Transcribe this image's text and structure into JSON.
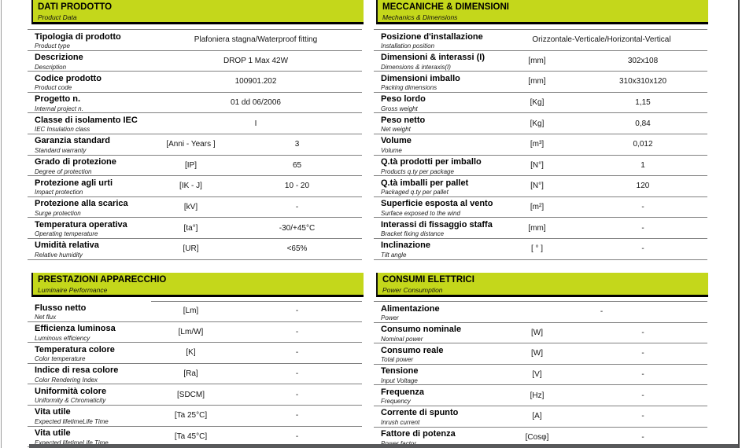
{
  "colors": {
    "header_green": "#c4d71b",
    "divider_gray": "#808080",
    "bottom_band": "#58595b",
    "page_border_right": "#4a4a4a"
  },
  "sections": [
    {
      "id": "product-data",
      "title": "DATI PRODOTTO",
      "subtitle": "Product Data",
      "rows": [
        {
          "label": "Tipologia di prodotto",
          "sublabel": "Product type",
          "unit": "",
          "value": "Plafoniera stagna/Waterproof fitting",
          "merged": true
        },
        {
          "label": "Descrizione",
          "sublabel": "Description",
          "unit": "",
          "value": "DROP 1 Max 42W",
          "merged": true
        },
        {
          "label": "Codice prodotto",
          "sublabel": "Product code",
          "unit": "",
          "value": "100901.202",
          "merged": true
        },
        {
          "label": "Progetto n.",
          "sublabel": "Internal project n.",
          "unit": "",
          "value": "01 dd 06/2006",
          "merged": true
        },
        {
          "label": "Classe di isolamento IEC",
          "sublabel": "IEC Insulation class",
          "unit": "",
          "value": "I",
          "merged": true
        },
        {
          "label": "Garanzia standard",
          "sublabel": "Standard warranty",
          "unit": "[Anni - Years ]",
          "value": "3"
        },
        {
          "label": "Grado di protezione",
          "sublabel": "Degree of protection",
          "unit": "[IP]",
          "value": "65"
        },
        {
          "label": "Protezione agli urti",
          "sublabel": "Impact protection",
          "unit": "[IK - J]",
          "value": "10 - 20"
        },
        {
          "label": "Protezione alla scarica",
          "sublabel": "Surge protection",
          "unit": "[kV]",
          "value": "-"
        },
        {
          "label": "Temperatura operativa",
          "sublabel": "Operating temperature",
          "unit": "[ta°]",
          "value": "-30/+45°C"
        },
        {
          "label": "Umidità relativa",
          "sublabel": "Relative humidity",
          "unit": "[UR]",
          "value": "<65%"
        }
      ]
    },
    {
      "id": "mechanics-dimensions",
      "title": "MECCANICHE & DIMENSIONI",
      "subtitle": "Mechanics & Dimensions",
      "rows": [
        {
          "label": "Posizione d'installazione",
          "sublabel": "Installation position",
          "unit": "",
          "value": "Orizzontale-Verticale/Horizontal-Vertical",
          "merged": true
        },
        {
          "label": "Dimensioni & interassi (I)",
          "sublabel": "Dimensions & interaxis(I)",
          "unit": "[mm]",
          "value": "302x108"
        },
        {
          "label": "Dimensioni imballo",
          "sublabel": "Packing dimensions",
          "unit": "[mm]",
          "value": "310x310x120"
        },
        {
          "label": "Peso lordo",
          "sublabel": "Gross weight",
          "unit": "[Kg]",
          "value": "1,15"
        },
        {
          "label": "Peso netto",
          "sublabel": "Net weight",
          "unit": "[Kg]",
          "value": "0,84"
        },
        {
          "label": "Volume",
          "sublabel": "Volume",
          "unit": "[m³]",
          "value": "0,012"
        },
        {
          "label": "Q.tà prodotti per imballo",
          "sublabel": "Products q.ty per package",
          "unit": "[N°]",
          "value": "1"
        },
        {
          "label": "Q.tà imballi per pallet",
          "sublabel": "Packaged q.ty per pallet",
          "unit": "[N°]",
          "value": "120"
        },
        {
          "label": "Superficie esposta al vento",
          "sublabel": "Surface exposed to the wind",
          "unit": "[m²]",
          "value": "-"
        },
        {
          "label": "Interassi di fissaggio staffa",
          "sublabel": "Bracket fixing distance",
          "unit": "[mm]",
          "value": "-"
        },
        {
          "label": "Inclinazione",
          "sublabel": "Tilt angle",
          "unit": "[ ° ]",
          "value": "-"
        }
      ]
    },
    {
      "id": "luminaire-performance",
      "title": "PRESTAZIONI APPARECCHIO",
      "subtitle": "Luminaire Performance",
      "rows": [
        {
          "label": "Flusso netto",
          "sublabel": "Net flux",
          "unit": "[Lm]",
          "value": "-"
        },
        {
          "label": "Efficienza luminosa",
          "sublabel": "Luminous efficiency",
          "unit": "[Lm/W]",
          "value": "-"
        },
        {
          "label": "Temperatura colore",
          "sublabel": "Color temperature",
          "unit": "[K]",
          "value": "-"
        },
        {
          "label": "Indice di resa colore",
          "sublabel": "Color Rendering Index",
          "unit": "[Ra]",
          "value": "-"
        },
        {
          "label": "Uniformità colore",
          "sublabel": "Uniformity & Chromaticity",
          "unit": "[SDCM]",
          "value": "-"
        },
        {
          "label": "Vita utile",
          "sublabel": "Expected lifetimeLife Time",
          "unit": "[Ta 25°C]",
          "value": "-"
        },
        {
          "label": "Vita utile",
          "sublabel": "Expected lifetimeLife Time",
          "unit": "[Ta 45°C]",
          "value": "-"
        }
      ]
    },
    {
      "id": "power-consumption",
      "title": "CONSUMI ELETTRICI",
      "subtitle": "Power Consumption",
      "rows": [
        {
          "label": "Alimentazione",
          "sublabel": "Power",
          "unit": "",
          "value": "-",
          "merged": true
        },
        {
          "label": "Consumo nominale",
          "sublabel": "Nominal power",
          "unit": "[W]",
          "value": "-"
        },
        {
          "label": "Consumo reale",
          "sublabel": "Total power",
          "unit": "[W]",
          "value": "-"
        },
        {
          "label": "Tensione",
          "sublabel": "Input Voltage",
          "unit": "[V]",
          "value": "-"
        },
        {
          "label": "Frequenza",
          "sublabel": "Frequency",
          "unit": "[Hz]",
          "value": "-"
        },
        {
          "label": "Corrente di spunto",
          "sublabel": "Inrush current",
          "unit": "[A]",
          "value": "-"
        },
        {
          "label": "Fattore di potenza",
          "sublabel": "Power factor",
          "unit": "[Cosφ]",
          "value": "-"
        }
      ]
    }
  ]
}
